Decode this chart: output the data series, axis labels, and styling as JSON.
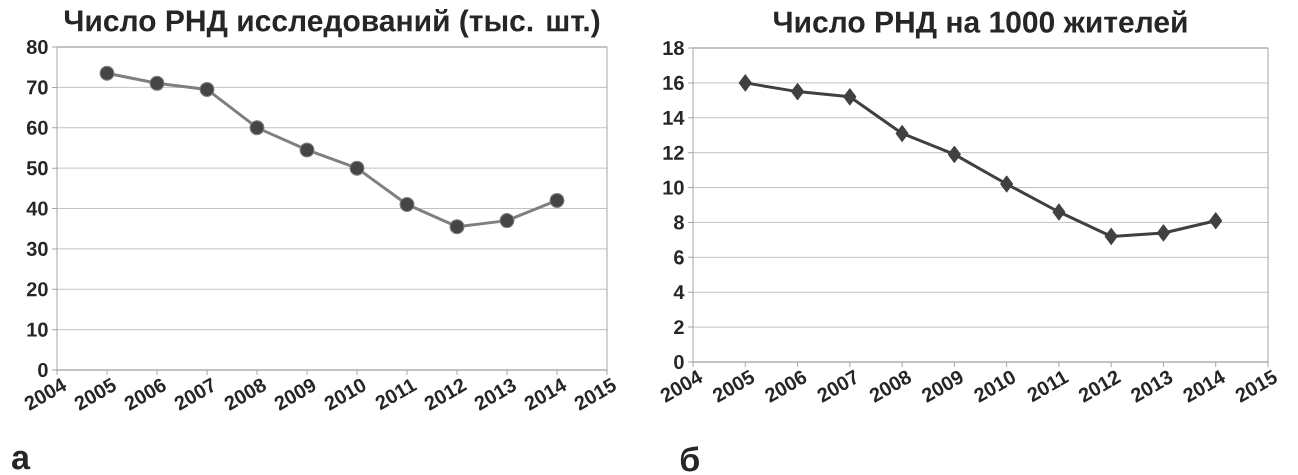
{
  "chart_data": [
    {
      "type": "line",
      "title": "Число РНД исследований (тыс. шт.)",
      "annotations": [
        "а"
      ],
      "x": [
        2005,
        2006,
        2007,
        2008,
        2009,
        2010,
        2011,
        2012,
        2013,
        2014
      ],
      "series": [
        {
          "color": "#7f7f7f",
          "values": [
            73.5,
            71,
            69.5,
            60,
            54.5,
            50,
            41,
            35.5,
            37,
            42
          ]
        }
      ],
      "xlim": [
        2004,
        2015
      ],
      "xticks": [
        2004,
        2005,
        2006,
        2007,
        2008,
        2009,
        2010,
        2011,
        2012,
        2013,
        2014,
        2015
      ],
      "ylim": [
        0,
        80
      ],
      "yticks": [
        0,
        10,
        20,
        30,
        40,
        50,
        60,
        70,
        80
      ],
      "grid": "y",
      "marker": "circle"
    },
    {
      "type": "line",
      "title": "Число РНД на 1000 жителей",
      "annotations": [
        "б"
      ],
      "x": [
        2005,
        2006,
        2007,
        2008,
        2009,
        2010,
        2011,
        2012,
        2013,
        2014
      ],
      "series": [
        {
          "color": "#404040",
          "values": [
            16,
            15.5,
            15.2,
            13.1,
            11.9,
            10.2,
            8.6,
            7.2,
            7.4,
            8.1
          ]
        }
      ],
      "xlim": [
        2004,
        2015
      ],
      "xticks": [
        2004,
        2005,
        2006,
        2007,
        2008,
        2009,
        2010,
        2011,
        2012,
        2013,
        2014,
        2015
      ],
      "ylim": [
        0,
        18
      ],
      "yticks": [
        0,
        2,
        4,
        6,
        8,
        10,
        12,
        14,
        16,
        18
      ],
      "grid": "y",
      "marker": "diamond"
    }
  ]
}
